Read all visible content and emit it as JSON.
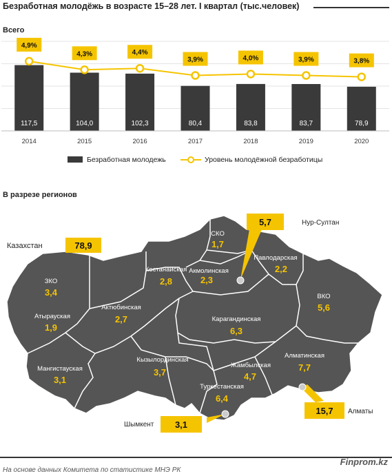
{
  "title": "Безработная молодёжь в возрасте 15–28  лет. I квартал (тыс.человек)",
  "subtitle_total": "Всего",
  "subtitle_regions": "В разрезе регионов",
  "source": "На основе данных  Комитета по статистике МНЭ РК",
  "brand": "Finprom.kz",
  "colors": {
    "bar": "#3a3a3a",
    "line": "#f5c400",
    "label_bg": "#f5c400",
    "map": "#555555",
    "map_border": "#ffffff",
    "map_value": "#f5c400"
  },
  "chart_data": [
    {
      "type": "bar",
      "categories": [
        "2014",
        "2015",
        "2016",
        "2017",
        "2018",
        "2019",
        "2020"
      ],
      "series": [
        {
          "name": "Безработная молодежь",
          "type": "bar",
          "values": [
            117.5,
            104.0,
            102.3,
            80.4,
            83.8,
            83.7,
            78.9
          ],
          "labels": [
            "117,5",
            "104,0",
            "102,3",
            "80,4",
            "83,8",
            "83,7",
            "78,9"
          ]
        },
        {
          "name": "Уровень молодёжной безработицы",
          "type": "line",
          "values": [
            4.9,
            4.3,
            4.4,
            3.9,
            4.0,
            3.9,
            3.8
          ],
          "labels": [
            "4,9%",
            "4,3%",
            "4,4%",
            "3,9%",
            "4,0%",
            "3,9%",
            "3,8%"
          ]
        }
      ],
      "legend_position": "bottom",
      "grid": true
    }
  ],
  "regions_map": {
    "kazakhstan": {
      "label": "Казахстан",
      "value": "78,9"
    },
    "regions": [
      {
        "name": "СКО",
        "value": "1,7"
      },
      {
        "name": "Акмолинская",
        "value": "2,3"
      },
      {
        "name": "Павлодарская",
        "value": "2,2"
      },
      {
        "name": "Костанайская",
        "value": "2,8"
      },
      {
        "name": "ЗКО",
        "value": "3,4"
      },
      {
        "name": "Атырауская",
        "value": "1,9"
      },
      {
        "name": "Актюбинская",
        "value": "2,7"
      },
      {
        "name": "ВКО",
        "value": "5,6"
      },
      {
        "name": "Карагандинская",
        "value": "6,3"
      },
      {
        "name": "Мангистауская",
        "value": "3,1"
      },
      {
        "name": "Кызылординская",
        "value": "3,7"
      },
      {
        "name": "Жамбылская",
        "value": "4,7"
      },
      {
        "name": "Алматинская",
        "value": "7,7"
      },
      {
        "name": "Туркестанская",
        "value": "6,4"
      }
    ],
    "cities": [
      {
        "name": "Нур-Султан",
        "value": "5,7"
      },
      {
        "name": "Алматы",
        "value": "15,7"
      },
      {
        "name": "Шымкент",
        "value": "3,1"
      }
    ]
  }
}
